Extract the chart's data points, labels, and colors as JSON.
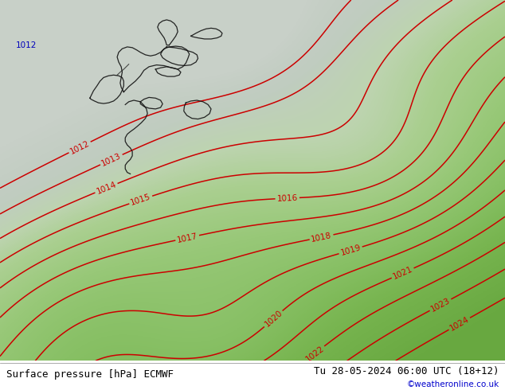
{
  "title_left": "Surface pressure [hPa] ECMWF",
  "title_right": "Tu 28-05-2024 06:00 UTC (18+12)",
  "watermark": "©weatheronline.co.uk",
  "bg_gray": "#c0c8c0",
  "bg_green_light": "#b8d498",
  "bg_green": "#98c870",
  "bg_green_dark": "#80b855",
  "isobar_color_red": "#cc0000",
  "isobar_color_black": "#111111",
  "isobar_color_blue": "#0000bb",
  "font_size_bottom": 9,
  "figsize": [
    6.34,
    4.9
  ],
  "dpi": 100,
  "p_levels": [
    1012,
    1013,
    1014,
    1015,
    1016,
    1017,
    1018,
    1019,
    1020,
    1021,
    1022,
    1023,
    1024
  ]
}
